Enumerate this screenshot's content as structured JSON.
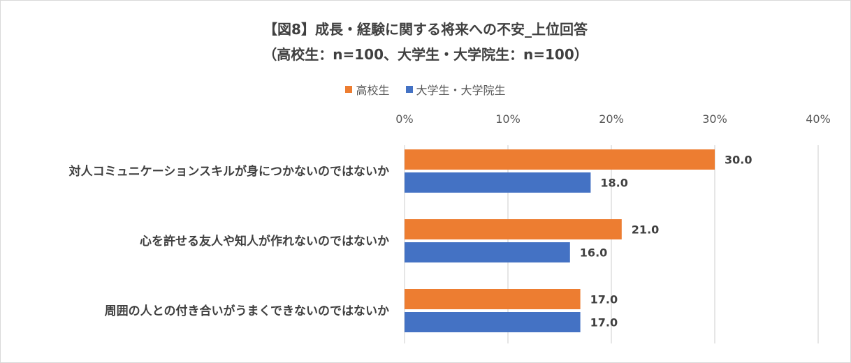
{
  "chart_data": {
    "type": "bar",
    "orientation": "horizontal",
    "title": "【図8】成長・経験に関する将来への不安_上位回答",
    "subtitle": "（高校生：n=100、大学生・大学院生：n=100）",
    "categories": [
      "対人コミュニケーションスキルが身につかないのではないか",
      "心を許せる友人や知人が作れないのではないか",
      "周囲の人との付き合いがうまくできないのではないか"
    ],
    "series": [
      {
        "name": "高校生",
        "values": [
          30.0,
          21.0,
          17.0
        ],
        "color": "#ed7d31",
        "labels": [
          "30.0",
          "21.0",
          "17.0"
        ]
      },
      {
        "name": "大学生・大学院生",
        "values": [
          18.0,
          16.0,
          17.0
        ],
        "color": "#4472c4",
        "labels": [
          "18.0",
          "16.0",
          "17.0"
        ]
      }
    ],
    "xlim": [
      0,
      40
    ],
    "ticks": [
      "0%",
      "10%",
      "20%",
      "30%",
      "40%"
    ],
    "tick_values": [
      0,
      10,
      20,
      30,
      40
    ],
    "axis_position": "top",
    "grid": true,
    "legend_position": "top",
    "xlabel": "",
    "ylabel": ""
  }
}
